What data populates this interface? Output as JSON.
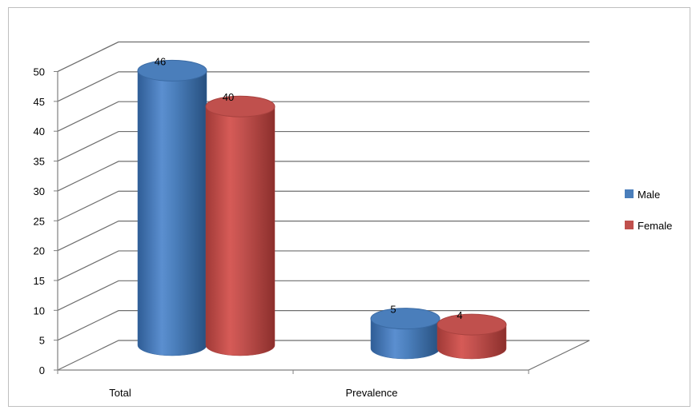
{
  "chart_data": {
    "type": "bar",
    "categories": [
      "Total",
      "Prevalence"
    ],
    "series": [
      {
        "name": "Male",
        "values": [
          46,
          5
        ],
        "color": "#4a7ebb"
      },
      {
        "name": "Female",
        "values": [
          40,
          4
        ],
        "color": "#c0504d"
      }
    ],
    "ylim": [
      0,
      50
    ],
    "yticks": [
      0,
      5,
      10,
      15,
      20,
      25,
      30,
      35,
      40,
      45,
      50
    ],
    "grid": true,
    "legend": "right",
    "style": "3d-cylinder"
  }
}
